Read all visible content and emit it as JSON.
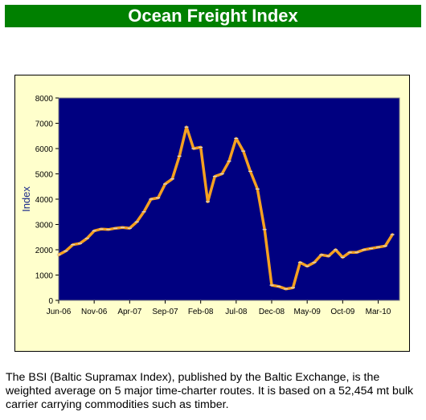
{
  "header": {
    "title": "Ocean Freight Index"
  },
  "colors": {
    "banner": "#008000",
    "frame": "#ffffcc",
    "plot": "#000080",
    "line": "#f5a020",
    "ylabel": "#1a2a8a"
  },
  "caption": "The BSI (Baltic Supramax Index), published by the Baltic Exchange, is the weighted average on 5 major time-charter routes. It is based on a 52,454 mt bulk carrier carrying commodities such as timber.",
  "chart_data": {
    "type": "line",
    "title": "",
    "xlabel": "",
    "ylabel": "Index",
    "ylim": [
      0,
      8000
    ],
    "yticks": [
      0,
      1000,
      2000,
      3000,
      4000,
      5000,
      6000,
      7000,
      8000
    ],
    "xlim": [
      "2006-06",
      "2010-06"
    ],
    "xticks": [
      {
        "date": "2006-06",
        "label": "Jun-06"
      },
      {
        "date": "2006-11",
        "label": "Nov-06"
      },
      {
        "date": "2007-04",
        "label": "Apr-07"
      },
      {
        "date": "2007-09",
        "label": "Sep-07"
      },
      {
        "date": "2008-02",
        "label": "Feb-08"
      },
      {
        "date": "2008-07",
        "label": "Jul-08"
      },
      {
        "date": "2008-12",
        "label": "Dec-08"
      },
      {
        "date": "2009-05",
        "label": "May-09"
      },
      {
        "date": "2009-10",
        "label": "Oct-09"
      },
      {
        "date": "2010-03",
        "label": "Mar-10"
      }
    ],
    "grid": false,
    "legend": "none",
    "series": [
      {
        "x": [
          "2006-06",
          "2006-07",
          "2006-08",
          "2006-09",
          "2006-10",
          "2006-11",
          "2006-12",
          "2007-01",
          "2007-02",
          "2007-03",
          "2007-04",
          "2007-05",
          "2007-06",
          "2007-07",
          "2007-08",
          "2007-09",
          "2007-10",
          "2007-11",
          "2007-12",
          "2008-01",
          "2008-02",
          "2008-03",
          "2008-04",
          "2008-05",
          "2008-06",
          "2008-07",
          "2008-08",
          "2008-09",
          "2008-10",
          "2008-11",
          "2008-12",
          "2009-01",
          "2009-02",
          "2009-03",
          "2009-04",
          "2009-05",
          "2009-06",
          "2009-07",
          "2009-08",
          "2009-09",
          "2009-10",
          "2009-11",
          "2009-12",
          "2010-01",
          "2010-02",
          "2010-03",
          "2010-04",
          "2010-05"
        ],
        "values": [
          1800,
          1950,
          2200,
          2250,
          2450,
          2750,
          2820,
          2800,
          2850,
          2880,
          2850,
          3100,
          3500,
          4000,
          4050,
          4600,
          4800,
          5700,
          6850,
          6000,
          6050,
          3900,
          4900,
          5000,
          5500,
          6400,
          5900,
          5100,
          4400,
          2800,
          600,
          550,
          450,
          500,
          1500,
          1350,
          1500,
          1800,
          1750,
          2000,
          1700,
          1900,
          1900,
          2000,
          2050,
          2100,
          2150,
          2600
        ]
      }
    ]
  }
}
